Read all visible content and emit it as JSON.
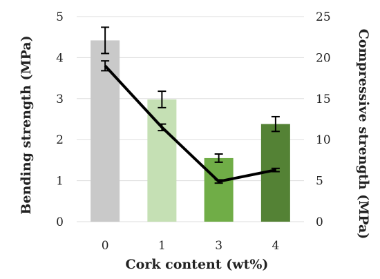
{
  "chart_data": {
    "type": "bar",
    "title": "",
    "categories": [
      "0",
      "1",
      "3",
      "4"
    ],
    "xlabel": "Cork content (wt%)",
    "ylabel_left": "Bending strength (MPa)",
    "ylabel_right": "Compressive strength (MPa)",
    "ylim_left": [
      0,
      5
    ],
    "ylim_right": [
      0,
      25
    ],
    "yticks_left": [
      "0",
      "1",
      "2",
      "3",
      "4",
      "5"
    ],
    "yticks_right": [
      "0",
      "5",
      "10",
      "15",
      "20",
      "25"
    ],
    "grid": true,
    "series": [
      {
        "type": "bar",
        "axis": "left",
        "values": [
          4.42,
          2.98,
          1.55,
          2.38
        ],
        "errors": [
          0.32,
          0.2,
          0.1,
          0.18
        ],
        "colors": [
          "#c9c9c9",
          "#c5e0b4",
          "#70ad47",
          "#548235"
        ]
      },
      {
        "type": "line",
        "axis": "right",
        "values": [
          19.0,
          11.5,
          4.9,
          6.3
        ],
        "errors": [
          0.6,
          0.4,
          0.2,
          0.2
        ],
        "color": "#000000"
      }
    ]
  }
}
